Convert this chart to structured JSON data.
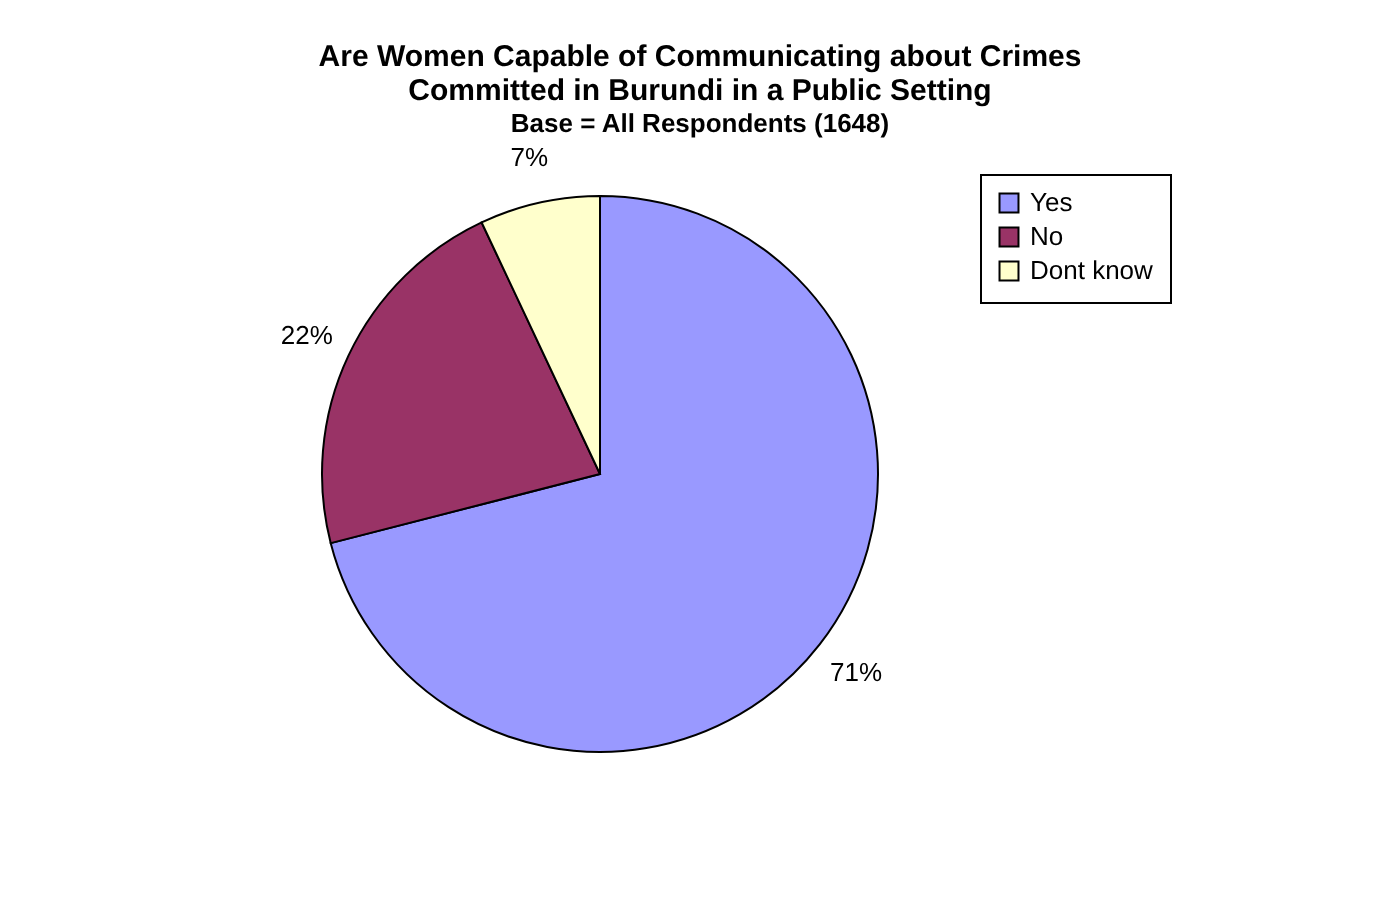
{
  "chart_data": {
    "type": "pie",
    "title": "Are Women Capable of Communicating about Crimes Committed in Burundi in a Public Setting",
    "subtitle": "Base = All Respondents (1648)",
    "categories": [
      "Yes",
      "No",
      "Dont know"
    ],
    "values": [
      71,
      22,
      7
    ],
    "colors": [
      "#9999ff",
      "#993366",
      "#ffffcc"
    ],
    "value_labels": [
      "71%",
      "22%",
      "7%"
    ],
    "legend": "right"
  }
}
